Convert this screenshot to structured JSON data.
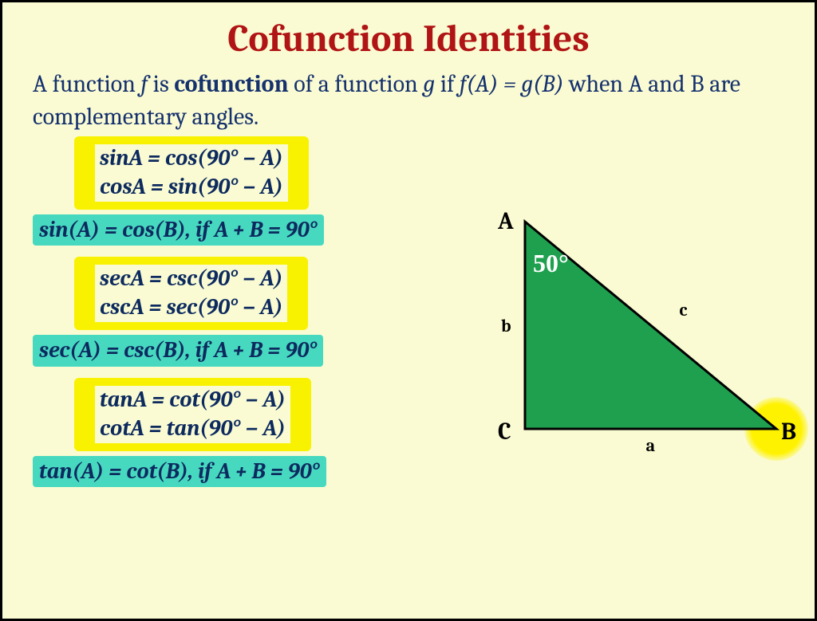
{
  "title": {
    "text": "Cofunction Identities",
    "color": "#b01414",
    "fontsize": 48
  },
  "desc": {
    "prefix": "A function ",
    "f": "f",
    "mid1": " is ",
    "bold": "cofunction",
    "mid2": " of a function ",
    "g": "g",
    "mid3": " if ",
    "eq": "f(A) = g(B)",
    "tail": " when A and B are complementary angles.",
    "color": "#15316e",
    "fontsize": 30
  },
  "identities": {
    "fontsize": 28,
    "color": "#0d2a5f",
    "highlight_yellow": "#f8f200",
    "highlight_teal": "#47d9c0",
    "groups": [
      {
        "box": [
          "sinA = cos(90° − A)",
          "cosA = sin(90° − A)"
        ],
        "teal": "sin(A) = cos(B), if A + B = 90°"
      },
      {
        "box": [
          "secA = csc(90° − A)",
          "cscA = sec(90° − A)"
        ],
        "teal": "sec(A) = csc(B), if A + B = 90°"
      },
      {
        "box": [
          "tanA = cot(90° − A)",
          "cotA = tan(90° − A)"
        ],
        "teal": "tan(A) = cot(B), if A + B = 90°"
      }
    ]
  },
  "triangle": {
    "type": "triangle-diagram",
    "fill_color": "#1fa04f",
    "stroke_color": "#000000",
    "stroke_width": 3,
    "points": {
      "A": [
        55,
        20
      ],
      "C": [
        55,
        280
      ],
      "B": [
        370,
        280
      ]
    },
    "vertex_labels": {
      "A": "A",
      "B": "B",
      "C": "C"
    },
    "side_labels": {
      "a": "a",
      "b": "b",
      "c": "c"
    },
    "vertex_fontsize": 30,
    "side_fontsize": 22,
    "angle_text": "50°",
    "angle_fontsize": 32,
    "angle_color": "#ffffff",
    "spot_color": "#fff200",
    "spot_diameter": 80,
    "background_color": "#fafbd2"
  }
}
